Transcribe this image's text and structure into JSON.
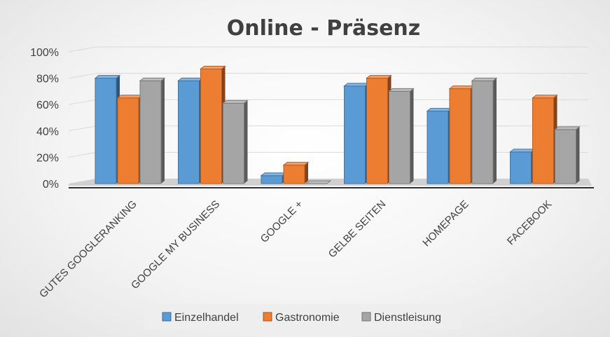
{
  "chart_data": {
    "type": "bar",
    "title": "Online - Präsenz",
    "categories": [
      "GUTES GOOGLERANKING",
      "GOOGLE MY BUSINESS",
      "GOOGLE +",
      "GELBE SEITEN",
      "HOMEPAGE",
      "FACEBOOK"
    ],
    "series": [
      {
        "name": "Einzelhandel",
        "values": [
          80,
          78,
          6,
          74,
          55,
          24
        ],
        "color": "#5B9BD5"
      },
      {
        "name": "Gastronomie",
        "values": [
          65,
          87,
          14,
          80,
          72,
          65
        ],
        "color": "#ED7D31"
      },
      {
        "name": "Dienstleisung",
        "values": [
          78,
          61,
          0,
          70,
          78,
          41
        ],
        "color": "#A5A5A5"
      }
    ],
    "yticks": [
      "0%",
      "20%",
      "40%",
      "60%",
      "80%",
      "100%"
    ],
    "ylim": [
      0,
      100
    ],
    "grid": true,
    "legend_position": "bottom",
    "xlabel": "",
    "ylabel": ""
  }
}
